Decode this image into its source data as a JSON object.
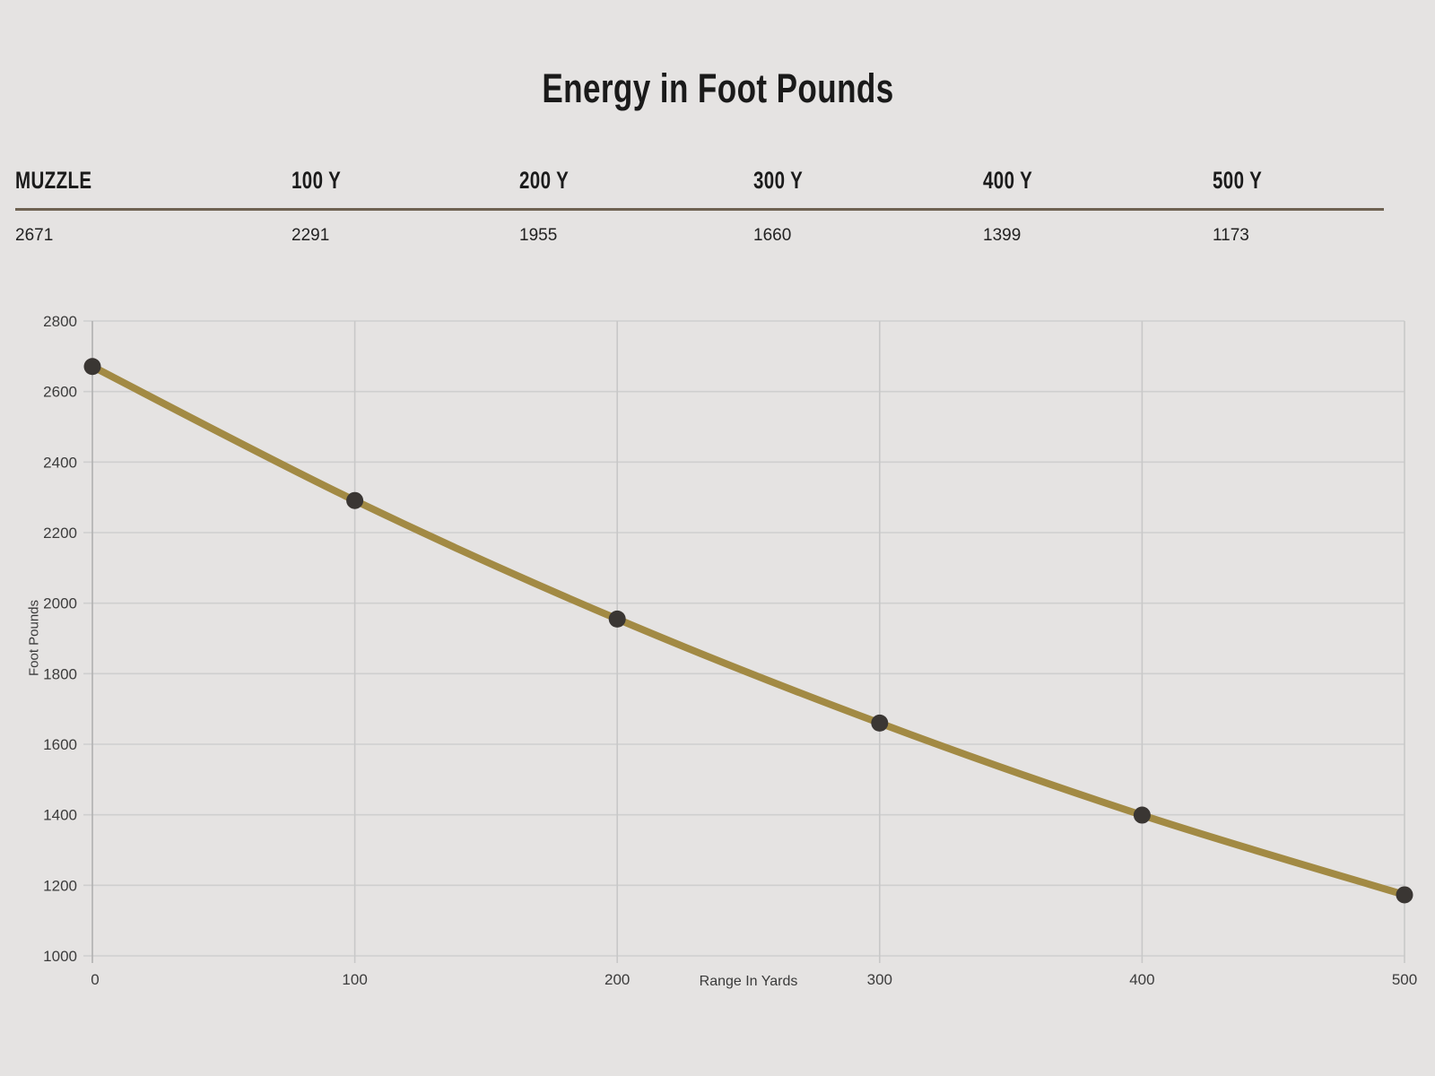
{
  "title": "Energy in Foot Pounds",
  "table": {
    "columns": [
      {
        "label": "MUZZLE",
        "value": "2671"
      },
      {
        "label": "100 Y",
        "value": "2291"
      },
      {
        "label": "200 Y",
        "value": "1955"
      },
      {
        "label": "300 Y",
        "value": "1660"
      },
      {
        "label": "400 Y",
        "value": "1399"
      },
      {
        "label": "500 Y",
        "value": "1173"
      }
    ]
  },
  "chart_data": {
    "type": "line",
    "title": "Energy in Foot Pounds",
    "x": [
      0,
      100,
      200,
      300,
      400,
      500
    ],
    "series": [
      {
        "name": "Energy",
        "values": [
          2671,
          2291,
          1955,
          1660,
          1399,
          1173
        ]
      }
    ],
    "xlabel": "Range In Yards",
    "ylabel": "Foot Pounds",
    "xlim": [
      0,
      500
    ],
    "ylim": [
      1000,
      2800
    ],
    "ytick_step": 200,
    "grid": true,
    "legend": false,
    "colors": {
      "line": "#a28a44",
      "point": "#3a3633",
      "grid_h": "#cfcfcf",
      "grid_v": "#c8c8c8",
      "axis": "#b0b0b0",
      "tick_text": "#3c3c3c",
      "background": "#e5e3e2",
      "rule": "#6e6252"
    }
  }
}
